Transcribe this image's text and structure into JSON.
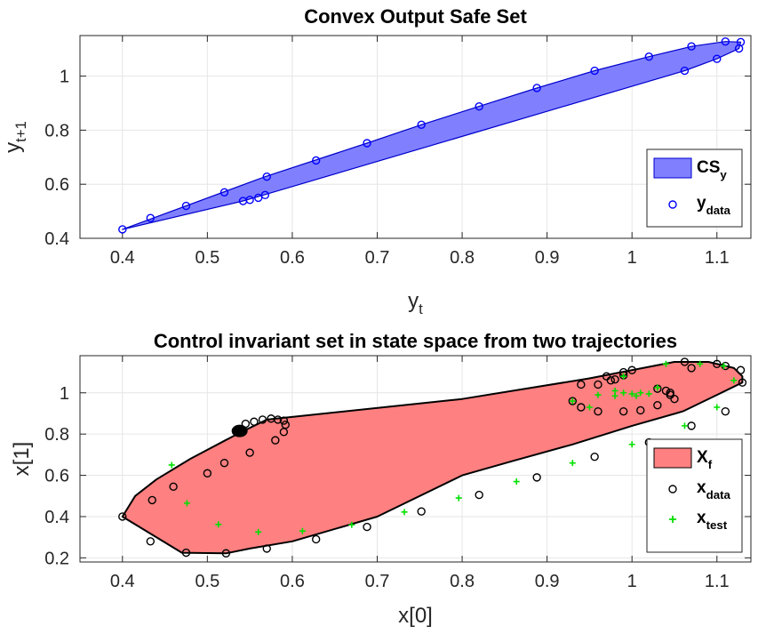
{
  "chart_data": [
    {
      "type": "scatter",
      "title": "Convex Output Safe Set",
      "xlabel": {
        "main": "y",
        "sub": "t"
      },
      "ylabel": {
        "main": "y",
        "sub": "t+1"
      },
      "xlim": [
        0.35,
        1.14
      ],
      "ylim": [
        0.4,
        1.15
      ],
      "xticks": [
        "0.4",
        "0.5",
        "0.6",
        "0.7",
        "0.8",
        "0.9",
        "1",
        "1.1"
      ],
      "yticks": [
        "0.4",
        "0.6",
        "0.8",
        "1"
      ],
      "grid": true,
      "legend_position": "bottom-right",
      "colors": {
        "region": "#8080ff",
        "region_edge": "#0000cc",
        "points": "#0000ff"
      },
      "region": {
        "name": {
          "main": "CS",
          "sub": "y"
        },
        "polygon": [
          [
            0.4,
            0.433
          ],
          [
            0.568,
            0.628
          ],
          [
            0.688,
            0.752
          ],
          [
            0.752,
            0.82
          ],
          [
            0.82,
            0.888
          ],
          [
            0.888,
            0.956
          ],
          [
            0.956,
            1.02
          ],
          [
            1.02,
            1.072
          ],
          [
            1.07,
            1.11
          ],
          [
            1.11,
            1.128
          ],
          [
            1.128,
            1.126
          ],
          [
            1.126,
            1.102
          ],
          [
            1.1,
            1.064
          ],
          [
            1.062,
            1.02
          ],
          [
            0.568,
            0.562
          ],
          [
            0.542,
            0.538
          ],
          [
            0.4,
            0.433
          ]
        ]
      },
      "series": [
        {
          "name": {
            "main": "y",
            "sub": "data"
          },
          "marker": "circle",
          "x": [
            0.4,
            0.433,
            0.475,
            0.52,
            0.542,
            0.55,
            0.56,
            0.568,
            0.57,
            0.628,
            0.688,
            0.752,
            0.82,
            0.888,
            0.956,
            1.02,
            1.07,
            1.11,
            1.128,
            1.126,
            1.1,
            1.062
          ],
          "y": [
            0.433,
            0.475,
            0.52,
            0.57,
            0.538,
            0.542,
            0.55,
            0.56,
            0.628,
            0.688,
            0.752,
            0.82,
            0.888,
            0.956,
            1.02,
            1.072,
            1.11,
            1.128,
            1.126,
            1.102,
            1.064,
            1.02
          ]
        }
      ]
    },
    {
      "type": "scatter",
      "title": "Control invariant set in state space from two trajectories",
      "xlabel": {
        "main": "x[0]",
        "sub": ""
      },
      "ylabel": {
        "main": "x[1]",
        "sub": ""
      },
      "xlim": [
        0.35,
        1.14
      ],
      "ylim": [
        0.18,
        1.18
      ],
      "xticks": [
        "0.4",
        "0.5",
        "0.6",
        "0.7",
        "0.8",
        "0.9",
        "1",
        "1.1"
      ],
      "yticks": [
        "0.2",
        "0.4",
        "0.6",
        "0.8",
        "1"
      ],
      "grid": true,
      "legend_position": "bottom-right",
      "colors": {
        "region": "#ff8080",
        "region_edge": "#000000",
        "data": "#000000",
        "test": "#00e000"
      },
      "region": {
        "name": {
          "main": "X",
          "sub": "f"
        },
        "polygon": [
          [
            0.4,
            0.4
          ],
          [
            0.415,
            0.5
          ],
          [
            0.44,
            0.58
          ],
          [
            0.48,
            0.68
          ],
          [
            0.535,
            0.8
          ],
          [
            0.57,
            0.87
          ],
          [
            0.8,
            0.97
          ],
          [
            0.95,
            1.07
          ],
          [
            1.05,
            1.15
          ],
          [
            1.09,
            1.15
          ],
          [
            1.12,
            1.12
          ],
          [
            1.13,
            1.08
          ],
          [
            1.13,
            1.05
          ],
          [
            1.1,
            0.99
          ],
          [
            1.06,
            0.91
          ],
          [
            1.0,
            0.84
          ],
          [
            0.93,
            0.75
          ],
          [
            0.86,
            0.67
          ],
          [
            0.8,
            0.6
          ],
          [
            0.7,
            0.4
          ],
          [
            0.6,
            0.28
          ],
          [
            0.55,
            0.245
          ],
          [
            0.522,
            0.222
          ],
          [
            0.47,
            0.225
          ],
          [
            0.4,
            0.4
          ]
        ]
      },
      "series": [
        {
          "name": {
            "main": "x",
            "sub": "data"
          },
          "marker": "circle",
          "x": [
            0.4,
            0.433,
            0.475,
            0.522,
            0.57,
            0.628,
            0.688,
            0.752,
            0.82,
            0.888,
            0.956,
            1.02,
            1.07,
            1.11,
            1.13,
            1.128,
            1.1,
            1.062,
            1.0,
            0.435,
            0.46,
            0.5,
            0.52,
            0.55,
            0.58,
            0.59,
            0.592,
            0.59,
            0.583,
            0.575,
            0.565,
            0.555,
            0.545,
            0.538,
            0.96,
            0.99,
            1.01,
            1.03,
            1.05,
            1.04,
            0.99,
            0.94,
            0.93,
            0.94,
            0.96,
            0.975,
            0.98,
            1.03,
            1.045,
            1.045,
            0.97,
            0.99,
            1.07,
            1.11
          ],
          "y": [
            0.4,
            0.28,
            0.225,
            0.222,
            0.245,
            0.29,
            0.35,
            0.425,
            0.505,
            0.59,
            0.69,
            0.76,
            0.84,
            0.91,
            1.05,
            1.11,
            1.14,
            1.15,
            1.11,
            0.48,
            0.545,
            0.61,
            0.66,
            0.71,
            0.77,
            0.81,
            0.845,
            0.865,
            0.87,
            0.875,
            0.87,
            0.86,
            0.85,
            0.82,
            0.91,
            0.91,
            0.915,
            0.94,
            0.97,
            1.01,
            1.085,
            1.04,
            0.96,
            0.93,
            1.04,
            1.06,
            1.065,
            1.02,
            1.0,
            0.99,
            1.08,
            1.1,
            1.12,
            1.13
          ]
        },
        {
          "name": {
            "main": "x",
            "sub": "test"
          },
          "marker": "plus",
          "x": [
            0.458,
            0.476,
            0.513,
            0.56,
            0.612,
            0.67,
            0.732,
            0.796,
            0.864,
            0.93,
            1.0,
            1.062,
            1.1,
            1.12,
            1.108,
            1.08,
            1.04,
            0.99,
            0.96,
            0.93,
            0.95,
            0.98,
            1.0,
            1.01,
            1.005,
            0.99,
            0.98,
            1.02,
            1.03
          ],
          "y": [
            0.65,
            0.465,
            0.362,
            0.325,
            0.33,
            0.36,
            0.422,
            0.49,
            0.57,
            0.66,
            0.75,
            0.84,
            0.93,
            1.06,
            1.13,
            1.14,
            1.14,
            1.08,
            0.99,
            0.96,
            0.93,
            0.985,
            0.995,
            1.0,
            0.985,
            1.0,
            1.01,
            0.995,
            1.025
          ]
        }
      ]
    }
  ]
}
